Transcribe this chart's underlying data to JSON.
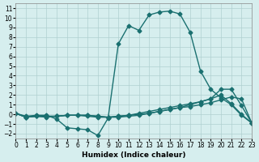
{
  "xlabel": "Humidex (Indice chaleur)",
  "ylabel": "",
  "background_color": "#d6eeee",
  "grid_color": "#b0d0d0",
  "line_color": "#1a7070",
  "xlim": [
    0,
    23
  ],
  "ylim": [
    -2.5,
    11.5
  ],
  "xticks": [
    0,
    1,
    2,
    3,
    4,
    5,
    6,
    7,
    8,
    9,
    10,
    11,
    12,
    13,
    14,
    15,
    16,
    17,
    18,
    19,
    20,
    21,
    22,
    23
  ],
  "yticks": [
    -2,
    -1,
    0,
    1,
    2,
    3,
    4,
    5,
    6,
    7,
    8,
    9,
    10,
    11
  ],
  "x": [
    0.0,
    1.0,
    2.0,
    3.0,
    4.0,
    5.0,
    6.0,
    7.0,
    8.0,
    9.0,
    10.0,
    11.0,
    12.0,
    13.0,
    14.0,
    15.0,
    16.0,
    17.0,
    18.0,
    19.0,
    20.0,
    21.0,
    22.0,
    23.0
  ],
  "series": [
    [
      0.1,
      -0.2,
      -0.1,
      -0.1,
      -0.5,
      -1.4,
      -1.5,
      -1.6,
      -2.2,
      -0.4,
      7.3,
      9.2,
      8.7,
      10.3,
      10.6,
      10.7,
      10.4,
      8.5,
      4.5,
      2.6,
      1.7,
      1.0,
      -0.1,
      -0.9
    ],
    [
      0.1,
      -0.3,
      -0.2,
      -0.2,
      -0.2,
      -0.1,
      -0.1,
      -0.1,
      -0.2,
      -0.3,
      -0.3,
      -0.2,
      -0.1,
      0.1,
      0.3,
      0.5,
      0.7,
      0.8,
      1.0,
      1.2,
      1.5,
      1.8,
      1.6,
      -0.9
    ],
    [
      0.1,
      -0.3,
      -0.2,
      -0.2,
      -0.2,
      -0.1,
      -0.1,
      -0.2,
      -0.3,
      -0.3,
      -0.2,
      -0.1,
      0.1,
      0.3,
      0.5,
      0.7,
      0.9,
      1.1,
      1.3,
      1.6,
      2.0,
      1.1,
      0.0,
      -0.9
    ],
    [
      0.1,
      -0.3,
      -0.2,
      -0.3,
      -0.2,
      -0.1,
      -0.1,
      -0.1,
      -0.2,
      -0.3,
      -0.2,
      -0.1,
      0.0,
      0.1,
      0.3,
      0.5,
      0.7,
      1.0,
      1.3,
      1.6,
      2.6,
      2.6,
      0.9,
      -0.9
    ]
  ]
}
